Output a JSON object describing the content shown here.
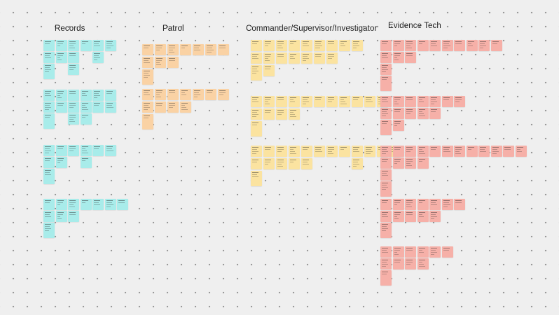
{
  "board": {
    "columns": [
      {
        "title": "Records",
        "color": "#a8ecea"
      },
      {
        "title": "Patrol",
        "color": "#fad2a4"
      },
      {
        "title": "Commander/Supervisor/Investigator",
        "color": "#fbe3a0"
      },
      {
        "title": "Evidence Tech",
        "color": "#f6b0a8"
      }
    ]
  }
}
